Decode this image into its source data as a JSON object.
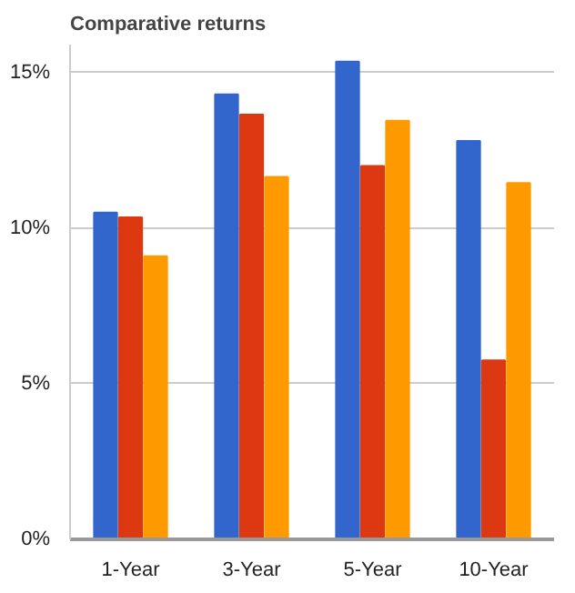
{
  "chart_data": {
    "type": "bar",
    "title": "Comparative returns",
    "categories": [
      "1-Year",
      "3-Year",
      "5-Year",
      "10-Year"
    ],
    "series": [
      {
        "color": "#3366cc",
        "values": [
          10.5,
          14.3,
          15.35,
          12.8
        ]
      },
      {
        "color": "#dc3912",
        "values": [
          10.35,
          13.65,
          12.0,
          5.75
        ]
      },
      {
        "color": "#ff9900",
        "values": [
          9.1,
          11.65,
          13.45,
          11.45
        ]
      }
    ],
    "ylim": [
      0,
      15.9
    ],
    "yticks": [
      {
        "value": 0,
        "label": "0%"
      },
      {
        "value": 5,
        "label": "5%"
      },
      {
        "value": 10,
        "label": "10%"
      },
      {
        "value": 15,
        "label": "15%"
      }
    ],
    "grid": "y"
  }
}
